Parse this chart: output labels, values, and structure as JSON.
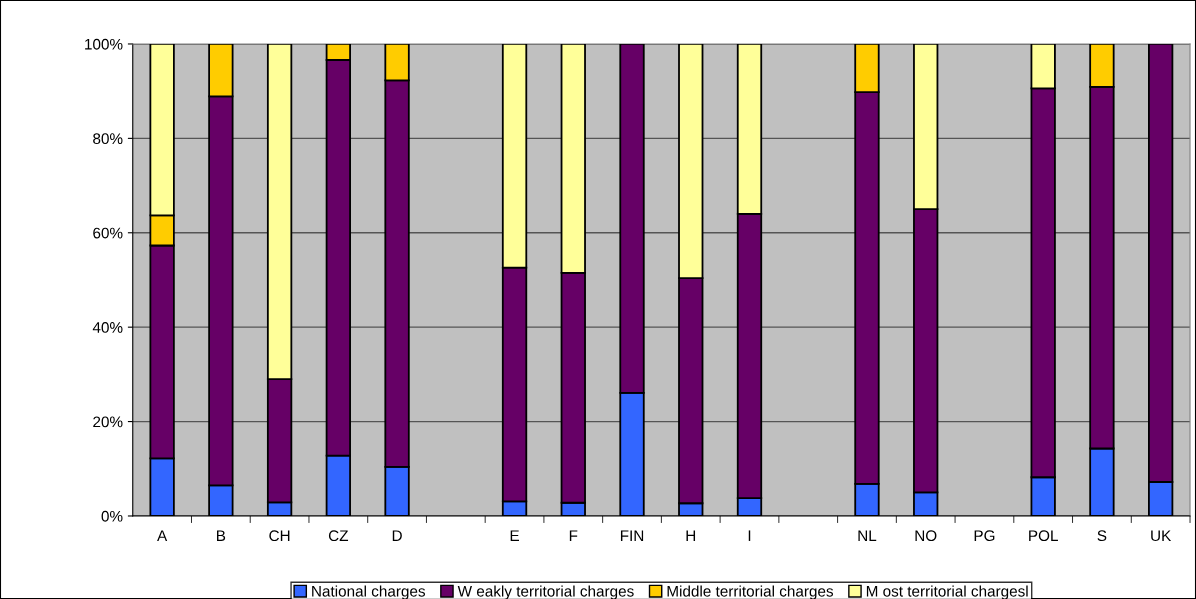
{
  "chart_data": {
    "type": "bar",
    "stacked": true,
    "categories": [
      "A",
      "B",
      "CH",
      "CZ",
      "D",
      null,
      "E",
      "F",
      "FIN",
      "H",
      "I",
      null,
      "NL",
      "NO",
      "PG",
      "POL",
      "S",
      "UK"
    ],
    "series": [
      {
        "name": "National charges",
        "color": "#3366ff",
        "values": [
          12.2,
          6.5,
          2.9,
          12.8,
          10.4,
          null,
          3.1,
          2.8,
          26.1,
          2.7,
          3.8,
          null,
          6.8,
          5.0,
          null,
          8.2,
          14.3,
          7.2
        ]
      },
      {
        "name": "W eakly territorial charges",
        "color": "#660066",
        "values": [
          45.1,
          82.4,
          26.1,
          83.8,
          81.9,
          null,
          49.5,
          48.7,
          73.9,
          47.7,
          60.2,
          null,
          83.0,
          60.0,
          null,
          82.4,
          76.6,
          92.8
        ]
      },
      {
        "name": "Middle territorial charges",
        "color": "#ffcc00",
        "values": [
          6.4,
          11.1,
          null,
          3.4,
          7.7,
          null,
          null,
          null,
          null,
          null,
          null,
          null,
          10.2,
          null,
          null,
          null,
          9.1,
          null
        ]
      },
      {
        "name": "M ost territorial chargesl",
        "color": "#ffff99",
        "values": [
          36.3,
          null,
          71.0,
          null,
          null,
          null,
          47.4,
          48.5,
          null,
          49.6,
          36.0,
          null,
          null,
          35.0,
          null,
          9.4,
          null,
          null
        ]
      }
    ],
    "ylim": [
      0,
      100
    ],
    "yticks": [
      {
        "value": 0,
        "label": "0%"
      },
      {
        "value": 20,
        "label": "20%"
      },
      {
        "value": 40,
        "label": "40%"
      },
      {
        "value": 60,
        "label": "60%"
      },
      {
        "value": 80,
        "label": "80%"
      },
      {
        "value": 100,
        "label": "100%"
      }
    ],
    "grid": "y",
    "legend": "bottom"
  }
}
